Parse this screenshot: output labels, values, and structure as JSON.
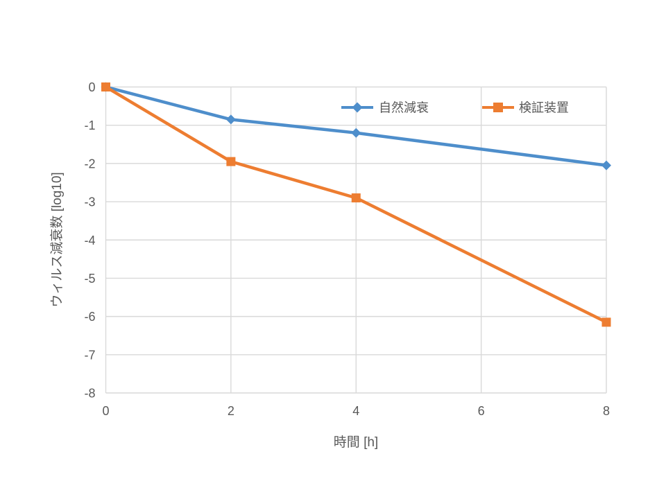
{
  "chart_data": {
    "type": "line",
    "title": "",
    "xlabel": "時間 [h]",
    "ylabel": "ウィルス減衰数 [log10]",
    "x": [
      0,
      2,
      4,
      8
    ],
    "series": [
      {
        "name": "自然減衰",
        "values": [
          0,
          -0.85,
          -1.2,
          -2.05
        ],
        "color": "#4E8ECB",
        "marker": "diamond"
      },
      {
        "name": "検証装置",
        "values": [
          0,
          -1.95,
          -2.9,
          -6.15
        ],
        "color": "#ED7D31",
        "marker": "square"
      }
    ],
    "xlim": [
      0,
      8
    ],
    "ylim": [
      -8,
      0
    ],
    "xticks": {
      "values": [
        0,
        2,
        4,
        6,
        8
      ],
      "labels": [
        "0",
        "2",
        "4",
        "6",
        "8"
      ]
    },
    "yticks": {
      "values": [
        0,
        -1,
        -2,
        -3,
        -4,
        -5,
        -6,
        -7,
        -8
      ],
      "labels": [
        "0",
        "-1",
        "-2",
        "-3",
        "-4",
        "-5",
        "-6",
        "-7",
        "-8"
      ]
    },
    "grid": true,
    "legend_position": "top-inside-horizontal",
    "style": {
      "text_color": "#595959",
      "gridline_color": "#D9D9D9",
      "background": "#ffffff",
      "line_width": 4.5,
      "marker_size": 13
    }
  }
}
